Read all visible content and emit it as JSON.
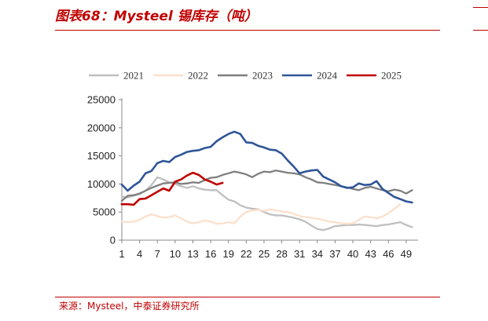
{
  "header": {
    "title": "图表68：Mysteel 锡库存（吨）"
  },
  "footer": {
    "source": "来源：Mysteel，中泰证券研究所"
  },
  "chart_data": {
    "type": "line",
    "title": "Mysteel 锡库存（吨）",
    "xlabel": "",
    "ylabel": "",
    "ylim": [
      0,
      25000
    ],
    "y_ticks": [
      0,
      5000,
      10000,
      15000,
      20000,
      25000
    ],
    "y_tick_labels": [
      "0",
      "5000",
      "10000",
      "15000",
      "20000",
      "25000"
    ],
    "x_ticks": [
      1,
      4,
      7,
      10,
      13,
      16,
      19,
      22,
      25,
      28,
      31,
      34,
      37,
      40,
      43,
      46,
      49
    ],
    "x_tick_labels": [
      "1",
      "4",
      "7",
      "10",
      "13",
      "16",
      "19",
      "22",
      "25",
      "28",
      "31",
      "34",
      "37",
      "40",
      "43",
      "46",
      "49"
    ],
    "xlim": [
      1,
      51
    ],
    "legend_position": "top",
    "series": [
      {
        "name": "2021",
        "color": "#bfbfbf",
        "x": [
          1,
          2,
          3,
          4,
          5,
          6,
          7,
          8,
          9,
          10,
          11,
          12,
          13,
          14,
          15,
          16,
          17,
          18,
          19,
          20,
          21,
          22,
          23,
          24,
          25,
          26,
          27,
          28,
          29,
          30,
          31,
          32,
          33,
          34,
          35,
          36,
          37,
          38,
          39,
          40,
          41,
          42,
          43,
          44,
          45,
          46,
          47,
          48,
          49,
          50
        ],
        "values": [
          7800,
          7600,
          7900,
          8200,
          8800,
          9800,
          11200,
          10800,
          10300,
          10000,
          9600,
          9300,
          9600,
          9200,
          9000,
          8900,
          8900,
          8000,
          7200,
          6900,
          6200,
          5800,
          5600,
          5500,
          5000,
          4600,
          4400,
          4400,
          4200,
          4000,
          3700,
          3300,
          2600,
          2000,
          1800,
          2100,
          2500,
          2600,
          2700,
          2700,
          2800,
          2700,
          2600,
          2500,
          2700,
          2800,
          3000,
          3200,
          2700,
          2300
        ]
      },
      {
        "name": "2022",
        "color": "#fbe0cc",
        "x": [
          1,
          2,
          3,
          4,
          5,
          6,
          7,
          8,
          9,
          10,
          11,
          12,
          13,
          14,
          15,
          16,
          17,
          18,
          19,
          20,
          21,
          22,
          23,
          24,
          25,
          26,
          27,
          28,
          29,
          30,
          31,
          32,
          33,
          34,
          35,
          36,
          37,
          38,
          39,
          40,
          41,
          42,
          43,
          44,
          45,
          46,
          47,
          48
        ],
        "values": [
          3300,
          3200,
          3300,
          3600,
          4200,
          4600,
          4300,
          4000,
          4100,
          4400,
          3900,
          3300,
          3000,
          3200,
          3500,
          3300,
          2900,
          3000,
          3200,
          3000,
          4200,
          5000,
          5300,
          5400,
          5200,
          5500,
          5300,
          5100,
          5000,
          4700,
          4300,
          4100,
          4000,
          3800,
          3600,
          3300,
          3200,
          3000,
          2900,
          3000,
          3600,
          4200,
          4100,
          3900,
          4200,
          4800,
          5600,
          6400
        ]
      },
      {
        "name": "2023",
        "color": "#7f7f7f",
        "x": [
          1,
          2,
          3,
          4,
          5,
          6,
          7,
          8,
          9,
          10,
          11,
          12,
          13,
          14,
          15,
          16,
          17,
          18,
          19,
          20,
          21,
          22,
          23,
          24,
          25,
          26,
          27,
          28,
          29,
          30,
          31,
          32,
          33,
          34,
          35,
          36,
          37,
          38,
          39,
          40,
          41,
          42,
          43,
          44,
          45,
          46,
          47,
          48,
          49,
          50
        ],
        "values": [
          7000,
          7900,
          8000,
          8300,
          8800,
          9300,
          9700,
          10100,
          10200,
          10300,
          10000,
          10100,
          10300,
          10200,
          10700,
          11100,
          11200,
          11600,
          11900,
          12200,
          12000,
          11700,
          11200,
          11800,
          12200,
          12100,
          12400,
          12200,
          12000,
          11900,
          11700,
          11200,
          10800,
          10300,
          10200,
          10000,
          9800,
          9600,
          9400,
          9100,
          8900,
          9300,
          9500,
          9200,
          8900,
          8700,
          9000,
          8800,
          8300,
          8900
        ]
      },
      {
        "name": "2024",
        "color": "#2f5597",
        "x": [
          1,
          2,
          3,
          4,
          5,
          6,
          7,
          8,
          9,
          10,
          11,
          12,
          13,
          14,
          15,
          16,
          17,
          18,
          19,
          20,
          21,
          22,
          23,
          24,
          25,
          26,
          27,
          28,
          29,
          30,
          31,
          32,
          33,
          34,
          35,
          36,
          37,
          38,
          39,
          40,
          41,
          42,
          43,
          44,
          45,
          46,
          47,
          48,
          49,
          50
        ],
        "values": [
          9900,
          8800,
          9700,
          10400,
          11900,
          12300,
          13700,
          14100,
          13900,
          14800,
          15200,
          15700,
          15900,
          16000,
          16400,
          16600,
          17600,
          18300,
          18900,
          19300,
          18900,
          17400,
          17300,
          16800,
          16500,
          16100,
          16000,
          15400,
          14200,
          13100,
          11900,
          12200,
          12400,
          12500,
          11300,
          10800,
          10300,
          9600,
          9300,
          9400,
          10100,
          9800,
          9900,
          10500,
          9100,
          8400,
          7700,
          7300,
          6900,
          6700
        ]
      },
      {
        "name": "2025",
        "color": "#c00000",
        "x": [
          1,
          2,
          3,
          4,
          5,
          6,
          7,
          8,
          9,
          10,
          11,
          12,
          13,
          14,
          15,
          16,
          17,
          18
        ],
        "values": [
          6400,
          6400,
          6300,
          7300,
          7400,
          8000,
          8600,
          9200,
          8800,
          10400,
          10800,
          11500,
          12000,
          11600,
          10800,
          10400,
          9900,
          10200
        ]
      }
    ]
  }
}
